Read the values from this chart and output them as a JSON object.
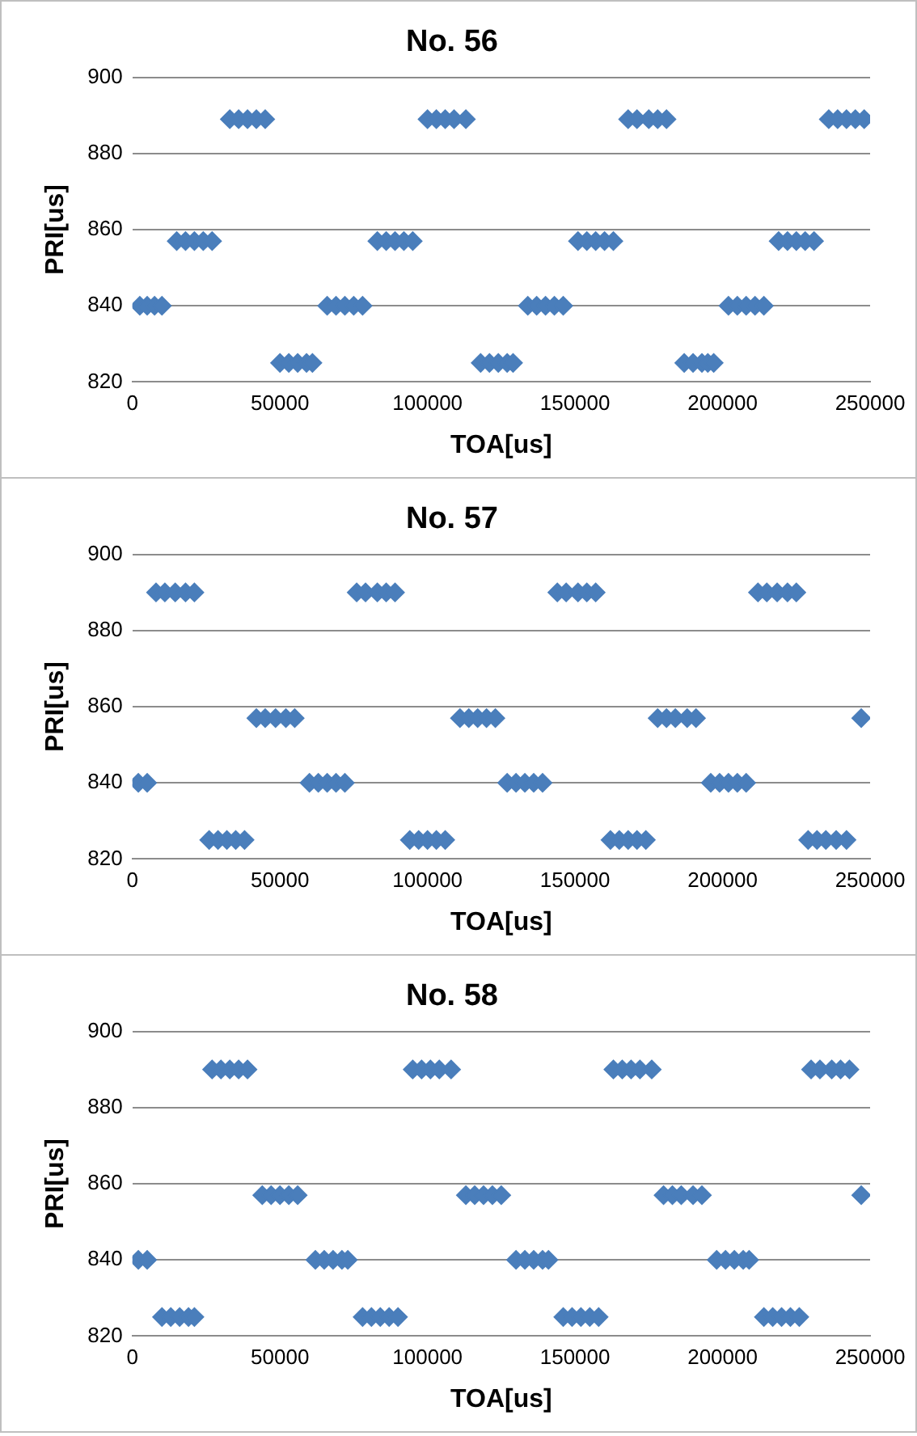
{
  "chart_data": [
    {
      "type": "scatter",
      "title": "No. 56",
      "xlabel": "TOA[us]",
      "ylabel": "PRI[us]",
      "color": "#4a7ebb",
      "marker": "diamond",
      "grid": "y",
      "legend": false,
      "xlim": [
        0,
        250000
      ],
      "xticks": [
        0,
        50000,
        100000,
        150000,
        200000,
        250000
      ],
      "ylim": [
        820,
        900
      ],
      "yticks": [
        820,
        840,
        860,
        880,
        900
      ],
      "x": [
        2500,
        5000,
        7500,
        10000,
        15000,
        18000,
        21000,
        24000,
        27000,
        33000,
        36000,
        39000,
        42000,
        45000,
        50000,
        53000,
        56000,
        59000,
        61000,
        66000,
        69000,
        72000,
        75000,
        78000,
        83000,
        86000,
        89000,
        92000,
        95000,
        100000,
        103000,
        106000,
        109000,
        113000,
        118000,
        121000,
        124000,
        127000,
        129000,
        134000,
        137000,
        140000,
        143000,
        146000,
        151000,
        154000,
        157000,
        160000,
        163000,
        168000,
        171000,
        175000,
        178000,
        181000,
        187000,
        190000,
        193000,
        195000,
        197000,
        202000,
        205000,
        208000,
        211000,
        214000,
        219000,
        222000,
        225000,
        228000,
        231000,
        236000,
        239000,
        242000,
        245000,
        248000
      ],
      "values": [
        840,
        840,
        840,
        840,
        857,
        857,
        857,
        857,
        857,
        889,
        889,
        889,
        889,
        889,
        825,
        825,
        825,
        825,
        825,
        840,
        840,
        840,
        840,
        840,
        857,
        857,
        857,
        857,
        857,
        889,
        889,
        889,
        889,
        889,
        825,
        825,
        825,
        825,
        825,
        840,
        840,
        840,
        840,
        840,
        857,
        857,
        857,
        857,
        857,
        889,
        889,
        889,
        889,
        889,
        825,
        825,
        825,
        825,
        825,
        840,
        840,
        840,
        840,
        840,
        857,
        857,
        857,
        857,
        857,
        889,
        889,
        889,
        889,
        889
      ]
    },
    {
      "type": "scatter",
      "title": "No. 57",
      "xlabel": "TOA[us]",
      "ylabel": "PRI[us]",
      "color": "#4a7ebb",
      "marker": "diamond",
      "grid": "y",
      "legend": false,
      "xlim": [
        0,
        250000
      ],
      "xticks": [
        0,
        50000,
        100000,
        150000,
        200000,
        250000
      ],
      "ylim": [
        820,
        900
      ],
      "yticks": [
        820,
        840,
        860,
        880,
        900
      ],
      "x": [
        2000,
        5000,
        8000,
        11000,
        14500,
        18000,
        21000,
        26000,
        29000,
        32000,
        35000,
        38000,
        42000,
        45000,
        48500,
        52000,
        55000,
        60000,
        63000,
        66000,
        69000,
        72000,
        76000,
        79000,
        83000,
        86000,
        89000,
        94000,
        97000,
        100000,
        103000,
        106000,
        111000,
        114000,
        117000,
        120000,
        123000,
        127000,
        130000,
        133000,
        136000,
        139000,
        144000,
        147000,
        151000,
        154000,
        157000,
        162000,
        165000,
        168000,
        171000,
        174000,
        178000,
        181000,
        184000,
        188000,
        191000,
        196000,
        199000,
        202000,
        205000,
        208000,
        212000,
        215000,
        218500,
        222000,
        225000,
        229000,
        232000,
        235000,
        238500,
        242000,
        247000
      ],
      "values": [
        840,
        840,
        890,
        890,
        890,
        890,
        890,
        825,
        825,
        825,
        825,
        825,
        857,
        857,
        857,
        857,
        857,
        840,
        840,
        840,
        840,
        840,
        890,
        890,
        890,
        890,
        890,
        825,
        825,
        825,
        825,
        825,
        857,
        857,
        857,
        857,
        857,
        840,
        840,
        840,
        840,
        840,
        890,
        890,
        890,
        890,
        890,
        825,
        825,
        825,
        825,
        825,
        857,
        857,
        857,
        857,
        857,
        840,
        840,
        840,
        840,
        840,
        890,
        890,
        890,
        890,
        890,
        825,
        825,
        825,
        825,
        825,
        857
      ]
    },
    {
      "type": "scatter",
      "title": "No. 58",
      "xlabel": "TOA[us]",
      "ylabel": "PRI[us]",
      "color": "#4a7ebb",
      "marker": "diamond",
      "grid": "y",
      "legend": false,
      "xlim": [
        0,
        250000
      ],
      "xticks": [
        0,
        50000,
        100000,
        150000,
        200000,
        250000
      ],
      "ylim": [
        820,
        900
      ],
      "yticks": [
        820,
        840,
        860,
        880,
        900
      ],
      "x": [
        2000,
        5000,
        10000,
        13000,
        16000,
        19000,
        21000,
        27000,
        30000,
        33000,
        36000,
        39000,
        44000,
        47000,
        50000,
        53000,
        56000,
        62000,
        65000,
        68000,
        71000,
        73000,
        78000,
        81000,
        84000,
        87000,
        90000,
        95000,
        98000,
        101000,
        104000,
        108000,
        113000,
        116000,
        119000,
        122000,
        125000,
        130000,
        133000,
        136000,
        139000,
        141000,
        146000,
        149000,
        152000,
        155000,
        158000,
        163000,
        166000,
        169000,
        172000,
        176000,
        180000,
        183000,
        186000,
        190000,
        193000,
        198000,
        201000,
        204000,
        207000,
        209000,
        214000,
        217000,
        220000,
        223000,
        226000,
        230000,
        233000,
        237000,
        240000,
        243000,
        247000
      ],
      "values": [
        840,
        840,
        825,
        825,
        825,
        825,
        825,
        890,
        890,
        890,
        890,
        890,
        857,
        857,
        857,
        857,
        857,
        840,
        840,
        840,
        840,
        840,
        825,
        825,
        825,
        825,
        825,
        890,
        890,
        890,
        890,
        890,
        857,
        857,
        857,
        857,
        857,
        840,
        840,
        840,
        840,
        840,
        825,
        825,
        825,
        825,
        825,
        890,
        890,
        890,
        890,
        890,
        857,
        857,
        857,
        857,
        857,
        840,
        840,
        840,
        840,
        840,
        825,
        825,
        825,
        825,
        825,
        890,
        890,
        890,
        890,
        890,
        857
      ]
    }
  ]
}
